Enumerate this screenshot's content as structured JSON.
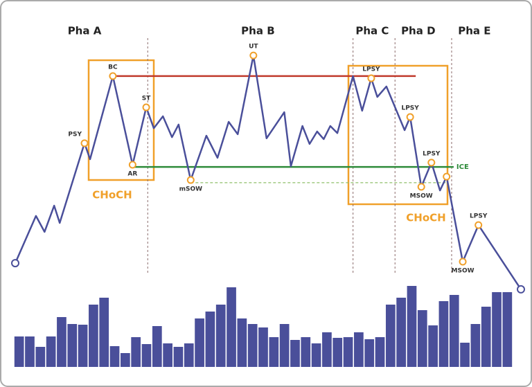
{
  "chart_data": [
    {
      "type": "line",
      "color": "#4a4f9a",
      "xlim": [
        0,
        100
      ],
      "ylim": [
        0,
        100
      ],
      "x": [
        0,
        4.1,
        5.8,
        7.7,
        8.8,
        13.7,
        14.8,
        19.3,
        23.2,
        25.9,
        27.4,
        29.2,
        31.0,
        32.3,
        34.7,
        37.8,
        40.0,
        42.2,
        44.0,
        47.1,
        49.7,
        53.2,
        54.5,
        56.8,
        58.2,
        59.7,
        61.0,
        62.3,
        63.7,
        66.8,
        68.6,
        70.4,
        71.6,
        73.4,
        77.0,
        78.1,
        80.3,
        82.3,
        84.0,
        85.3,
        88.5,
        91.6,
        100
      ],
      "values": [
        11.4,
        30.9,
        24.3,
        35.1,
        28,
        60.9,
        54.3,
        88.6,
        52,
        75.7,
        67.1,
        72,
        63.4,
        68.6,
        45.7,
        64,
        54.9,
        69.7,
        64.6,
        97.1,
        62.9,
        73.7,
        51.4,
        68,
        60.6,
        65.7,
        62.6,
        68,
        65.1,
        88.6,
        74.3,
        87.7,
        80,
        84.3,
        66.3,
        71.7,
        42.9,
        52.9,
        41.4,
        47.1,
        12,
        27.1,
        0.6
      ],
      "phases": [
        {
          "label": "Pha A",
          "x": 13.7
        },
        {
          "label": "Pha B",
          "x": 48.0
        },
        {
          "label": "Pha C",
          "x": 70.6
        },
        {
          "label": "Pha D",
          "x": 79.7
        },
        {
          "label": "Pha E",
          "x": 90.8
        }
      ],
      "phase_dividers": [
        26.2,
        66.8,
        75.1,
        86.3
      ],
      "levels": [
        {
          "value": 88.6,
          "x": [
            19.3,
            79.2
          ],
          "color": "#c0392b",
          "style": "solid"
        },
        {
          "value": 51.1,
          "x": [
            23.2,
            86.7
          ],
          "color": "#2e8b3a",
          "style": "solid",
          "label": "ICE"
        },
        {
          "value": 44.6,
          "x": [
            34.7,
            85.3
          ],
          "color": "#8fbf6a",
          "style": "dashed"
        }
      ],
      "annotations": [
        {
          "text": "PSY",
          "point": 5,
          "position": "left"
        },
        {
          "text": "BC",
          "point": 7,
          "position": "above"
        },
        {
          "text": "AR",
          "point": 8,
          "position": "below"
        },
        {
          "text": "ST",
          "point": 9,
          "position": "above"
        },
        {
          "text": "mSOW",
          "point": 14,
          "position": "below"
        },
        {
          "text": "UT",
          "point": 19,
          "position": "above"
        },
        {
          "text": "LPSY",
          "point": 31,
          "position": "above"
        },
        {
          "text": "LPSY",
          "point": 35,
          "position": "above"
        },
        {
          "text": "MSOW",
          "point": 36,
          "position": "below"
        },
        {
          "text": "LPSY",
          "point": 37,
          "position": "above"
        },
        {
          "text": "MSOW",
          "point": 40,
          "position": "below"
        },
        {
          "text": "LPSY",
          "point": 41,
          "position": "above"
        }
      ],
      "markers": [
        39
      ],
      "end_markers": [
        0,
        42
      ],
      "choch_label": "CHoCH"
    },
    {
      "type": "bar",
      "color": "#4a4f9a",
      "ylim": [
        0,
        120
      ],
      "values": [
        44,
        44,
        29,
        44,
        72,
        62,
        61,
        90,
        100,
        30,
        20,
        43,
        33,
        59,
        34,
        29,
        34,
        70,
        80,
        90,
        115,
        70,
        62,
        57,
        43,
        62,
        39,
        43,
        34,
        50,
        42,
        43,
        50,
        40,
        43,
        90,
        100,
        117,
        82,
        60,
        95,
        104,
        35,
        62,
        87,
        108,
        108
      ]
    }
  ]
}
